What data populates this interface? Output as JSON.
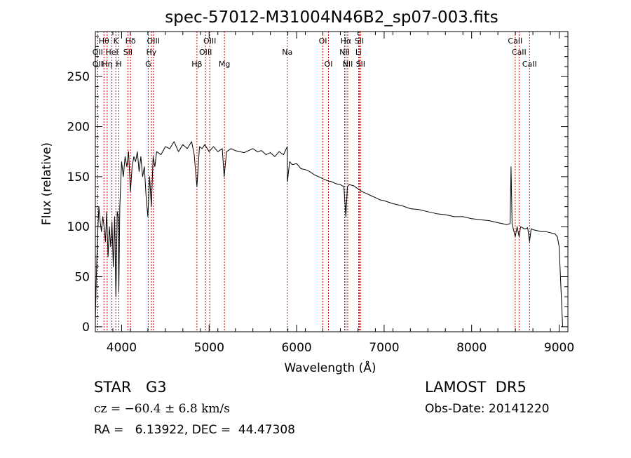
{
  "chart_data": {
    "type": "line",
    "title": "spec-57012-M31004N46B2_sp07-003.fits",
    "xlabel": "Wavelength (Å)",
    "ylabel": "Flux (relative)",
    "xlim": [
      3700,
      9100
    ],
    "ylim": [
      -5,
      295
    ],
    "xticks": [
      4000,
      5000,
      6000,
      7000,
      8000,
      9000
    ],
    "yticks": [
      0,
      50,
      100,
      150,
      200,
      250
    ],
    "grid": false,
    "series": [
      {
        "x": [
          3700,
          3710,
          3725,
          3740,
          3755,
          3770,
          3785,
          3800,
          3815,
          3830,
          3845,
          3860,
          3875,
          3890,
          3905,
          3920,
          3935,
          3950,
          3960,
          3968,
          3980,
          4000,
          4020,
          4040,
          4060,
          4080,
          4101,
          4120,
          4140,
          4160,
          4180,
          4200,
          4220,
          4240,
          4260,
          4280,
          4300,
          4320,
          4340,
          4360,
          4380,
          4400,
          4450,
          4500,
          4550,
          4600,
          4650,
          4700,
          4750,
          4800,
          4830,
          4861,
          4890,
          4920,
          4950,
          5000,
          5050,
          5100,
          5150,
          5172,
          5200,
          5250,
          5300,
          5350,
          5400,
          5450,
          5500,
          5550,
          5600,
          5650,
          5700,
          5750,
          5800,
          5850,
          5893,
          5895,
          5920,
          5950,
          6000,
          6050,
          6100,
          6150,
          6200,
          6250,
          6300,
          6350,
          6400,
          6450,
          6500,
          6540,
          6563,
          6580,
          6600,
          6650,
          6700,
          6750,
          6800,
          6850,
          6900,
          6950,
          7000,
          7100,
          7200,
          7300,
          7400,
          7500,
          7600,
          7700,
          7800,
          7900,
          8000,
          8100,
          8200,
          8300,
          8350,
          8400,
          8440,
          8450,
          8462,
          8470,
          8498,
          8520,
          8542,
          8560,
          8580,
          8600,
          8620,
          8640,
          8662,
          8680,
          8700,
          8750,
          8800,
          8850,
          8900,
          8950,
          8980,
          9000,
          9020,
          9040
        ],
        "y": [
          5,
          45,
          90,
          120,
          105,
          95,
          110,
          100,
          85,
          115,
          70,
          100,
          80,
          105,
          60,
          110,
          30,
          115,
          110,
          35,
          120,
          165,
          150,
          170,
          160,
          175,
          135,
          160,
          170,
          165,
          175,
          155,
          170,
          150,
          160,
          130,
          110,
          150,
          120,
          170,
          160,
          175,
          172,
          180,
          178,
          185,
          175,
          182,
          178,
          185,
          172,
          140,
          180,
          178,
          182,
          175,
          180,
          175,
          178,
          150,
          175,
          178,
          176,
          175,
          174,
          176,
          178,
          175,
          176,
          172,
          174,
          170,
          175,
          172,
          180,
          145,
          165,
          162,
          163,
          158,
          157,
          155,
          152,
          150,
          148,
          146,
          145,
          143,
          142,
          140,
          110,
          140,
          142,
          141,
          138,
          135,
          133,
          131,
          129,
          127,
          126,
          123,
          121,
          118,
          117,
          115,
          113,
          112,
          110,
          110,
          108,
          107,
          106,
          104,
          103,
          102,
          103,
          160,
          103,
          100,
          90,
          100,
          90,
          100,
          99,
          98,
          98,
          99,
          85,
          98,
          97,
          96,
          95,
          95,
          94,
          93,
          90,
          80,
          40,
          0
        ]
      }
    ],
    "line_markers": [
      {
        "label": "Hθ",
        "x": 3798,
        "row": 0
      },
      {
        "label": "K",
        "x": 3934,
        "row": 0
      },
      {
        "label": "Hδ",
        "x": 4102,
        "row": 0
      },
      {
        "label": "OIII",
        "x": 4363,
        "row": 0
      },
      {
        "label": "OIII",
        "x": 5007,
        "row": 0
      },
      {
        "label": "OI",
        "x": 6300,
        "row": 0
      },
      {
        "label": "Hα",
        "x": 6563,
        "row": 0
      },
      {
        "label": "SII",
        "x": 6716,
        "row": 0
      },
      {
        "label": "CaII",
        "x": 8498,
        "row": 0
      },
      {
        "label": "OII",
        "x": 3727,
        "row": 1
      },
      {
        "label": "HeI",
        "x": 3889,
        "row": 1
      },
      {
        "label": "SII",
        "x": 4072,
        "row": 1
      },
      {
        "label": "Hγ",
        "x": 4340,
        "row": 1
      },
      {
        "label": "OIII",
        "x": 4959,
        "row": 1
      },
      {
        "label": "Na",
        "x": 5893,
        "row": 1
      },
      {
        "label": "NII",
        "x": 6548,
        "row": 1
      },
      {
        "label": "Li",
        "x": 6708,
        "row": 1
      },
      {
        "label": "CaII",
        "x": 8542,
        "row": 1
      },
      {
        "label": "OII",
        "x": 3727,
        "row": 2
      },
      {
        "label": "Hη",
        "x": 3835,
        "row": 2
      },
      {
        "label": "H",
        "x": 3968,
        "row": 2
      },
      {
        "label": "G",
        "x": 4304,
        "row": 2
      },
      {
        "label": "Hβ",
        "x": 4861,
        "row": 2
      },
      {
        "label": "Mg",
        "x": 5175,
        "row": 2
      },
      {
        "label": "OI",
        "x": 6364,
        "row": 2
      },
      {
        "label": "NII",
        "x": 6584,
        "row": 2
      },
      {
        "label": "SII",
        "x": 6731,
        "row": 2
      },
      {
        "label": "CaII",
        "x": 8662,
        "row": 2
      }
    ],
    "marker_color": "#cc0000"
  },
  "info": {
    "object_class": "STAR",
    "subclass": "G3",
    "survey": "LAMOST  DR5",
    "cz": "cz = −60.4 ± 6.8 km/s",
    "obs_date": "Obs-Date: 20141220",
    "radec": "RA =   6.13922, DEC =  44.47308"
  }
}
